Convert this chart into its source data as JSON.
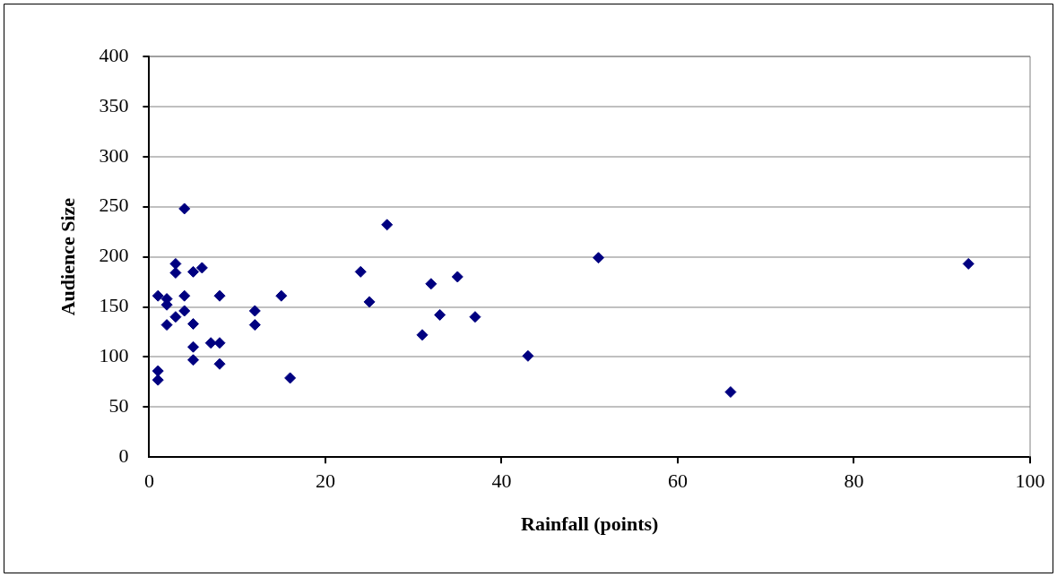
{
  "chart_data": {
    "type": "scatter",
    "xlabel": "Rainfall (points)",
    "ylabel": "Audience Size",
    "x": [
      4,
      3,
      3,
      5,
      6,
      1,
      2,
      2,
      4,
      8,
      15,
      4,
      12,
      12,
      3,
      2,
      5,
      5,
      5,
      7,
      8,
      8,
      1,
      1,
      16,
      27,
      24,
      25,
      32,
      35,
      33,
      37,
      31,
      43,
      51,
      66,
      93
    ],
    "series": [
      {
        "color": "#000080",
        "values": [
          248,
          193,
          184,
          185,
          189,
          161,
          158,
          152,
          161,
          161,
          161,
          146,
          146,
          132,
          140,
          132,
          133,
          110,
          97,
          114,
          114,
          93,
          86,
          77,
          79,
          232,
          185,
          155,
          173,
          180,
          142,
          140,
          122,
          101,
          199,
          65,
          193
        ]
      }
    ],
    "xlim": [
      0,
      100
    ],
    "xticks": [
      0,
      20,
      40,
      60,
      80,
      100
    ],
    "ylim": [
      0,
      400
    ],
    "yticks": [
      0,
      50,
      100,
      150,
      200,
      250,
      300,
      350,
      400
    ],
    "grid": "y",
    "legend": false,
    "marker": "diamond"
  }
}
